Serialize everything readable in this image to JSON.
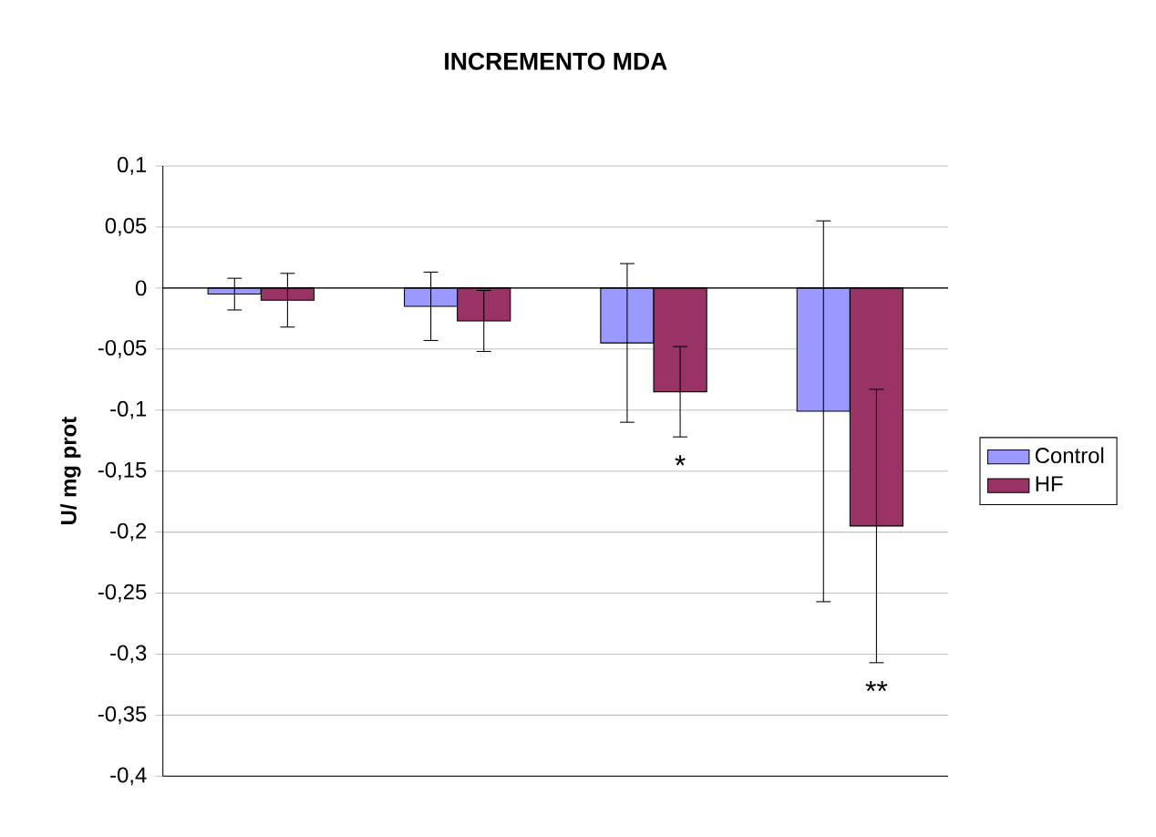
{
  "chart_data": {
    "type": "bar",
    "title": "INCREMENTO MDA",
    "ylabel": "U/ mg prot",
    "categories": [
      null,
      null,
      null,
      null
    ],
    "series": [
      {
        "name": "Control",
        "color": "#9999ff",
        "values": [
          -0.005,
          -0.015,
          -0.045,
          -0.101
        ],
        "errors": [
          0.013,
          0.028,
          0.065,
          0.156
        ]
      },
      {
        "name": "HF",
        "color": "#993366",
        "values": [
          -0.01,
          -0.027,
          -0.085,
          -0.195
        ],
        "errors": [
          0.022,
          0.025,
          0.037,
          0.112
        ]
      }
    ],
    "ylim": [
      -0.4,
      0.1
    ],
    "yticks": [
      {
        "value": 0.1,
        "label": "0,1"
      },
      {
        "value": 0.05,
        "label": "0,05"
      },
      {
        "value": 0,
        "label": "0"
      },
      {
        "value": -0.05,
        "label": "-0,05"
      },
      {
        "value": -0.1,
        "label": "-0,1"
      },
      {
        "value": -0.15,
        "label": "-0,15"
      },
      {
        "value": -0.2,
        "label": "-0,2"
      },
      {
        "value": -0.25,
        "label": "-0,25"
      },
      {
        "value": -0.3,
        "label": "-0,3"
      },
      {
        "value": -0.35,
        "label": "-0,35"
      },
      {
        "value": -0.4,
        "label": "-0,4"
      }
    ],
    "annotations": [
      "*",
      "**"
    ],
    "grid": "y",
    "legend": "right"
  }
}
